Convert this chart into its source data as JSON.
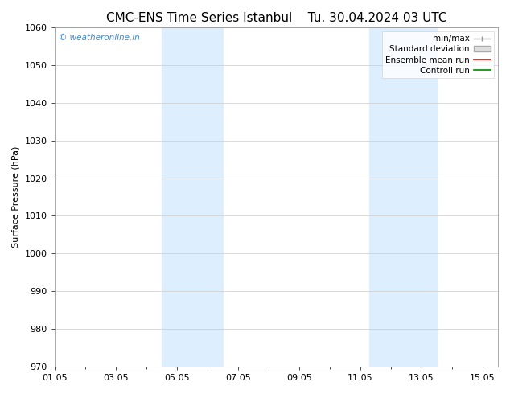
{
  "title": "CMC-ENS Time Series Istanbul",
  "title2": "Tu. 30.04.2024 03 UTC",
  "ylabel": "Surface Pressure (hPa)",
  "ylim": [
    970,
    1060
  ],
  "yticks": [
    970,
    980,
    990,
    1000,
    1010,
    1020,
    1030,
    1040,
    1050,
    1060
  ],
  "xlim": [
    0,
    14.5
  ],
  "xtick_labels": [
    "01.05",
    "03.05",
    "05.05",
    "07.05",
    "09.05",
    "11.05",
    "13.05",
    "15.05"
  ],
  "xtick_positions": [
    0,
    2,
    4,
    6,
    8,
    10,
    12,
    14
  ],
  "shaded_regions": [
    {
      "x_start": 3.5,
      "x_end": 5.5,
      "color": "#ddeeff"
    },
    {
      "x_start": 10.3,
      "x_end": 12.5,
      "color": "#ddeeff"
    }
  ],
  "watermark": "© weatheronline.in",
  "watermark_color": "#4488cc",
  "legend_items": [
    {
      "label": "min/max",
      "type": "line_with_caps",
      "color": "#999999"
    },
    {
      "label": "Standard deviation",
      "type": "patch",
      "facecolor": "#dddddd",
      "edgecolor": "#aaaaaa"
    },
    {
      "label": "Ensemble mean run",
      "type": "line",
      "color": "#ff0000"
    },
    {
      "label": "Controll run",
      "type": "line",
      "color": "#008800"
    }
  ],
  "background_color": "#ffffff",
  "grid_color": "#cccccc",
  "title_fontsize": 11,
  "axis_fontsize": 8,
  "legend_fontsize": 7.5
}
